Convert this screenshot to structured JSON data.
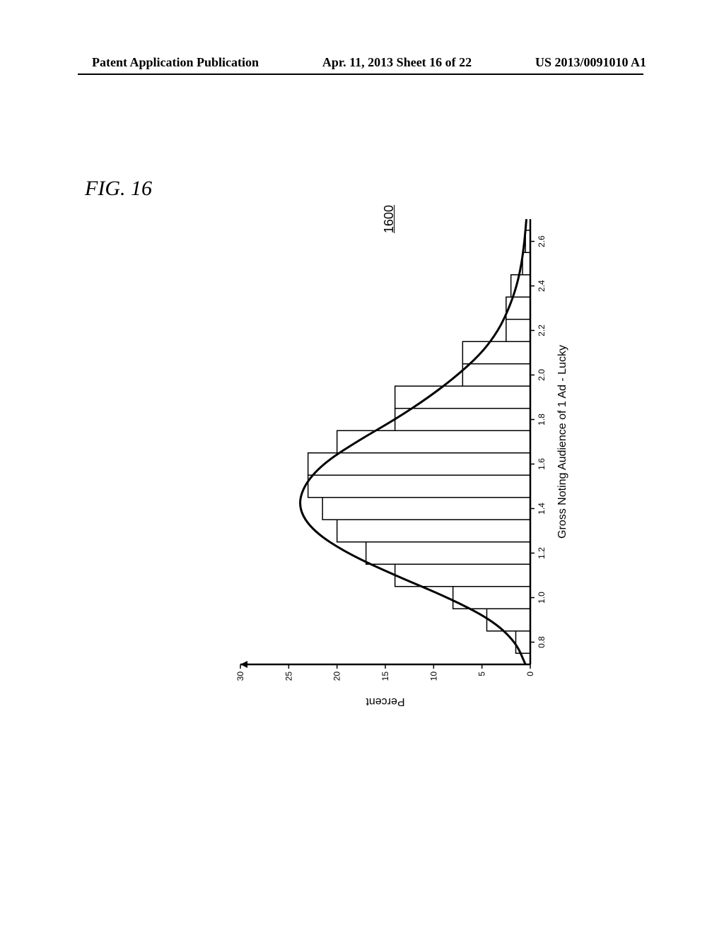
{
  "header": {
    "left": "Patent Application Publication",
    "center": "Apr. 11, 2013  Sheet 16 of 22",
    "right": "US 2013/0091010 A1"
  },
  "figure": {
    "label": "FIG. 16",
    "ref_num": "1600"
  },
  "chart": {
    "type": "histogram+curve",
    "xlabel": "Gross Noting Audience of 1 Ad - Lucky",
    "ylabel": "Percent",
    "xlim": [
      0.7,
      2.7
    ],
    "ylim": [
      0,
      30
    ],
    "xticks": [
      0.8,
      1.0,
      1.2,
      1.4,
      1.6,
      1.8,
      2.0,
      2.2,
      2.4,
      2.6
    ],
    "yticks": [
      0,
      5,
      10,
      15,
      20,
      25,
      30
    ],
    "label_fontsize": 16,
    "tick_fontsize": 12,
    "axis_color": "#000000",
    "axis_width": 2.5,
    "bar_fill": "#ffffff",
    "bar_stroke": "#000000",
    "bar_stroke_width": 1.5,
    "curve_stroke": "#000000",
    "curve_width": 3,
    "background_color": "#ffffff",
    "bars": [
      {
        "x": 0.75,
        "w": 0.1,
        "h": 1.5
      },
      {
        "x": 0.85,
        "w": 0.1,
        "h": 4.5
      },
      {
        "x": 0.95,
        "w": 0.1,
        "h": 8.0
      },
      {
        "x": 1.05,
        "w": 0.1,
        "h": 14.0
      },
      {
        "x": 1.15,
        "w": 0.1,
        "h": 17.0
      },
      {
        "x": 1.25,
        "w": 0.1,
        "h": 20.0
      },
      {
        "x": 1.35,
        "w": 0.1,
        "h": 21.5
      },
      {
        "x": 1.45,
        "w": 0.1,
        "h": 23.0
      },
      {
        "x": 1.55,
        "w": 0.1,
        "h": 23.0
      },
      {
        "x": 1.65,
        "w": 0.1,
        "h": 20.0
      },
      {
        "x": 1.75,
        "w": 0.1,
        "h": 14.0
      },
      {
        "x": 1.85,
        "w": 0.1,
        "h": 14.0
      },
      {
        "x": 1.95,
        "w": 0.1,
        "h": 7.0
      },
      {
        "x": 2.05,
        "w": 0.1,
        "h": 7.0
      },
      {
        "x": 2.15,
        "w": 0.1,
        "h": 2.5
      },
      {
        "x": 2.25,
        "w": 0.1,
        "h": 2.5
      },
      {
        "x": 2.35,
        "w": 0.1,
        "h": 2.0
      },
      {
        "x": 2.45,
        "w": 0.1,
        "h": 0.8
      },
      {
        "x": 2.55,
        "w": 0.1,
        "h": 0.5
      }
    ],
    "curve": [
      {
        "x": 0.7,
        "y": 0.5
      },
      {
        "x": 0.8,
        "y": 1.5
      },
      {
        "x": 0.9,
        "y": 4.0
      },
      {
        "x": 1.0,
        "y": 8.5
      },
      {
        "x": 1.1,
        "y": 14.0
      },
      {
        "x": 1.2,
        "y": 19.0
      },
      {
        "x": 1.3,
        "y": 22.5
      },
      {
        "x": 1.4,
        "y": 24.0
      },
      {
        "x": 1.5,
        "y": 23.5
      },
      {
        "x": 1.6,
        "y": 21.5
      },
      {
        "x": 1.7,
        "y": 18.0
      },
      {
        "x": 1.8,
        "y": 14.0
      },
      {
        "x": 1.9,
        "y": 10.5
      },
      {
        "x": 2.0,
        "y": 7.5
      },
      {
        "x": 2.1,
        "y": 5.0
      },
      {
        "x": 2.2,
        "y": 3.3
      },
      {
        "x": 2.3,
        "y": 2.2
      },
      {
        "x": 2.4,
        "y": 1.4
      },
      {
        "x": 2.5,
        "y": 0.9
      },
      {
        "x": 2.6,
        "y": 0.6
      },
      {
        "x": 2.7,
        "y": 0.4
      }
    ]
  }
}
